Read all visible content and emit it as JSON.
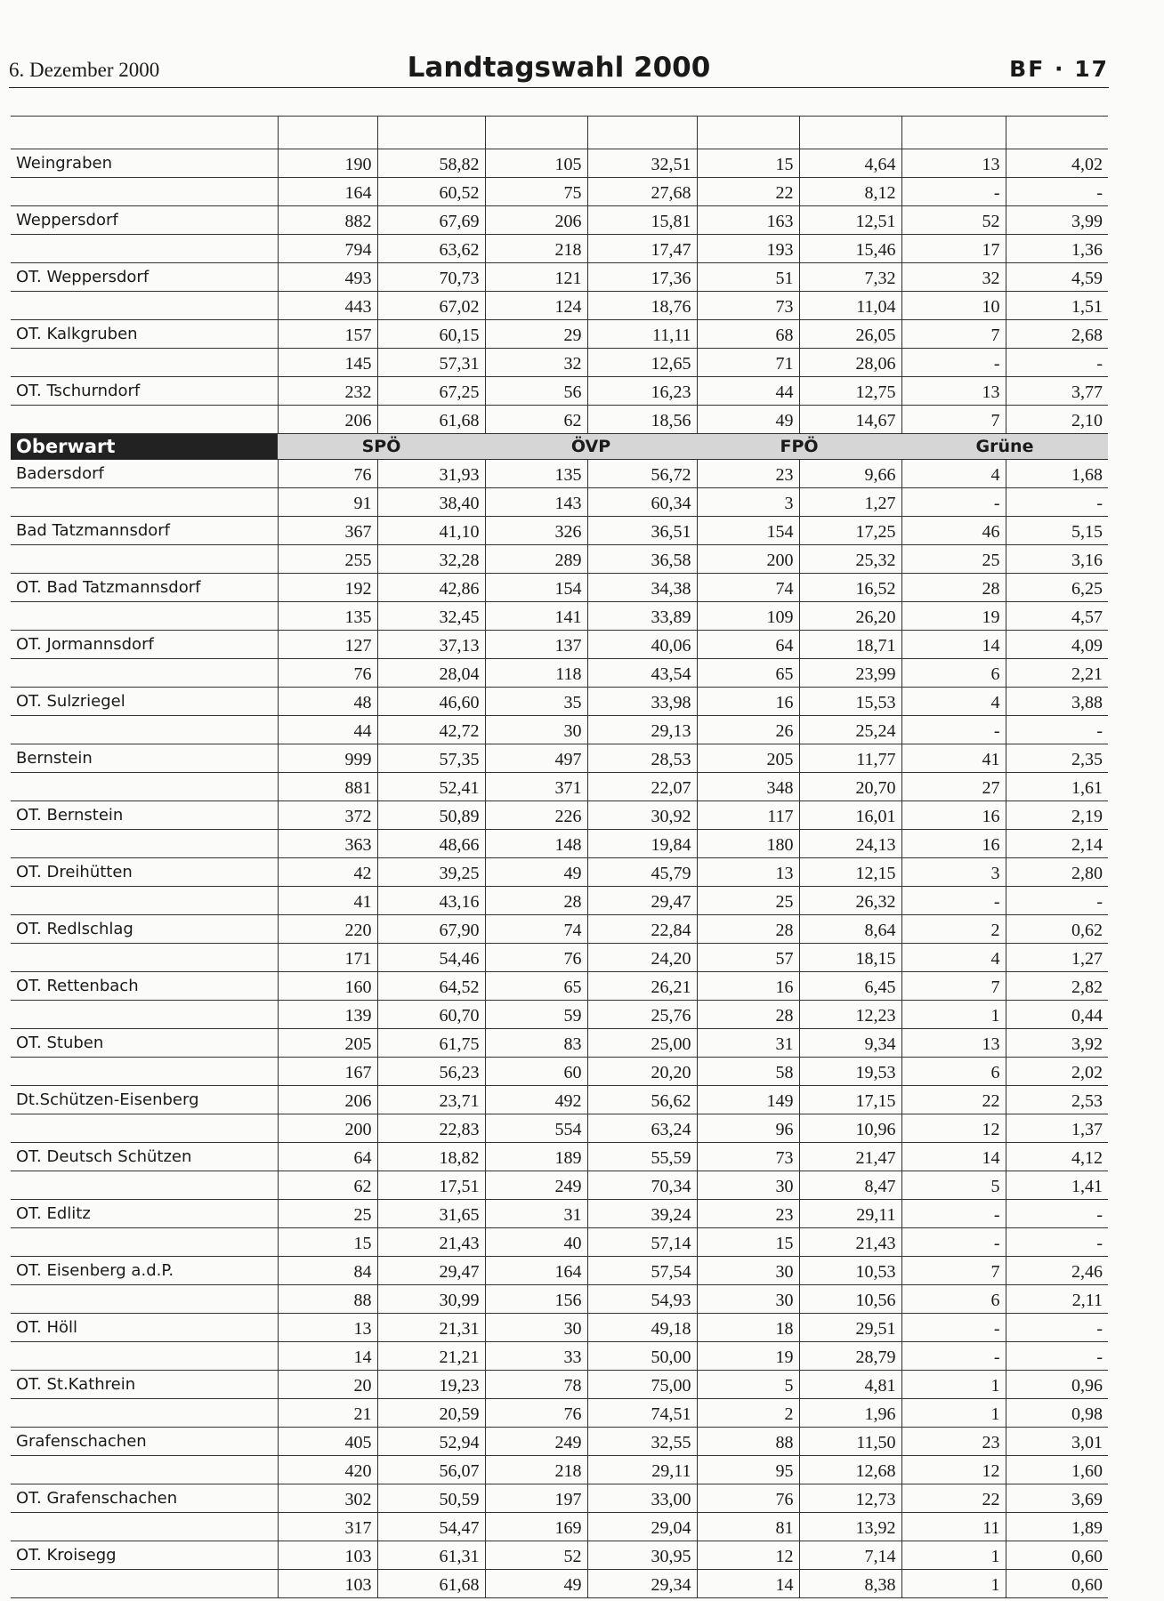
{
  "header": {
    "date": "6. Dezember 2000",
    "title": "Landtagswahl 2000",
    "page": "BF · 17"
  },
  "groups": [
    {
      "places": [
        {
          "name": "Weingraben",
          "rows": [
            [
              "190",
              "58,82",
              "105",
              "32,51",
              "15",
              "4,64",
              "13",
              "4,02"
            ],
            [
              "164",
              "60,52",
              "75",
              "27,68",
              "22",
              "8,12",
              "-",
              "-"
            ]
          ]
        },
        {
          "name": "Weppersdorf",
          "rows": [
            [
              "882",
              "67,69",
              "206",
              "15,81",
              "163",
              "12,51",
              "52",
              "3,99"
            ],
            [
              "794",
              "63,62",
              "218",
              "17,47",
              "193",
              "15,46",
              "17",
              "1,36"
            ]
          ]
        },
        {
          "name": "OT. Weppersdorf",
          "rows": [
            [
              "493",
              "70,73",
              "121",
              "17,36",
              "51",
              "7,32",
              "32",
              "4,59"
            ],
            [
              "443",
              "67,02",
              "124",
              "18,76",
              "73",
              "11,04",
              "10",
              "1,51"
            ]
          ]
        },
        {
          "name": "OT. Kalkgruben",
          "rows": [
            [
              "157",
              "60,15",
              "29",
              "11,11",
              "68",
              "26,05",
              "7",
              "2,68"
            ],
            [
              "145",
              "57,31",
              "32",
              "12,65",
              "71",
              "28,06",
              "-",
              "-"
            ]
          ]
        },
        {
          "name": "OT. Tschurndorf",
          "rows": [
            [
              "232",
              "67,25",
              "56",
              "16,23",
              "44",
              "12,75",
              "13",
              "3,77"
            ],
            [
              "206",
              "61,68",
              "62",
              "18,56",
              "49",
              "14,67",
              "7",
              "2,10"
            ]
          ]
        }
      ]
    },
    {
      "title": "Oberwart",
      "columns": [
        "SPÖ",
        "ÖVP",
        "FPÖ",
        "Grüne"
      ],
      "places": [
        {
          "name": "Badersdorf",
          "rows": [
            [
              "76",
              "31,93",
              "135",
              "56,72",
              "23",
              "9,66",
              "4",
              "1,68"
            ],
            [
              "91",
              "38,40",
              "143",
              "60,34",
              "3",
              "1,27",
              "-",
              "-"
            ]
          ]
        },
        {
          "name": "Bad Tatzmannsdorf",
          "rows": [
            [
              "367",
              "41,10",
              "326",
              "36,51",
              "154",
              "17,25",
              "46",
              "5,15"
            ],
            [
              "255",
              "32,28",
              "289",
              "36,58",
              "200",
              "25,32",
              "25",
              "3,16"
            ]
          ]
        },
        {
          "name": "OT. Bad Tatzmannsdorf",
          "rows": [
            [
              "192",
              "42,86",
              "154",
              "34,38",
              "74",
              "16,52",
              "28",
              "6,25"
            ],
            [
              "135",
              "32,45",
              "141",
              "33,89",
              "109",
              "26,20",
              "19",
              "4,57"
            ]
          ]
        },
        {
          "name": "OT. Jormannsdorf",
          "rows": [
            [
              "127",
              "37,13",
              "137",
              "40,06",
              "64",
              "18,71",
              "14",
              "4,09"
            ],
            [
              "76",
              "28,04",
              "118",
              "43,54",
              "65",
              "23,99",
              "6",
              "2,21"
            ]
          ]
        },
        {
          "name": "OT. Sulzriegel",
          "rows": [
            [
              "48",
              "46,60",
              "35",
              "33,98",
              "16",
              "15,53",
              "4",
              "3,88"
            ],
            [
              "44",
              "42,72",
              "30",
              "29,13",
              "26",
              "25,24",
              "-",
              "-"
            ]
          ]
        },
        {
          "name": "Bernstein",
          "rows": [
            [
              "999",
              "57,35",
              "497",
              "28,53",
              "205",
              "11,77",
              "41",
              "2,35"
            ],
            [
              "881",
              "52,41",
              "371",
              "22,07",
              "348",
              "20,70",
              "27",
              "1,61"
            ]
          ]
        },
        {
          "name": "OT. Bernstein",
          "rows": [
            [
              "372",
              "50,89",
              "226",
              "30,92",
              "117",
              "16,01",
              "16",
              "2,19"
            ],
            [
              "363",
              "48,66",
              "148",
              "19,84",
              "180",
              "24,13",
              "16",
              "2,14"
            ]
          ]
        },
        {
          "name": "OT. Dreihütten",
          "rows": [
            [
              "42",
              "39,25",
              "49",
              "45,79",
              "13",
              "12,15",
              "3",
              "2,80"
            ],
            [
              "41",
              "43,16",
              "28",
              "29,47",
              "25",
              "26,32",
              "-",
              "-"
            ]
          ]
        },
        {
          "name": "OT. Redlschlag",
          "rows": [
            [
              "220",
              "67,90",
              "74",
              "22,84",
              "28",
              "8,64",
              "2",
              "0,62"
            ],
            [
              "171",
              "54,46",
              "76",
              "24,20",
              "57",
              "18,15",
              "4",
              "1,27"
            ]
          ]
        },
        {
          "name": "OT. Rettenbach",
          "rows": [
            [
              "160",
              "64,52",
              "65",
              "26,21",
              "16",
              "6,45",
              "7",
              "2,82"
            ],
            [
              "139",
              "60,70",
              "59",
              "25,76",
              "28",
              "12,23",
              "1",
              "0,44"
            ]
          ]
        },
        {
          "name": "OT. Stuben",
          "rows": [
            [
              "205",
              "61,75",
              "83",
              "25,00",
              "31",
              "9,34",
              "13",
              "3,92"
            ],
            [
              "167",
              "56,23",
              "60",
              "20,20",
              "58",
              "19,53",
              "6",
              "2,02"
            ]
          ]
        },
        {
          "name": "Dt.Schützen-Eisenberg",
          "rows": [
            [
              "206",
              "23,71",
              "492",
              "56,62",
              "149",
              "17,15",
              "22",
              "2,53"
            ],
            [
              "200",
              "22,83",
              "554",
              "63,24",
              "96",
              "10,96",
              "12",
              "1,37"
            ]
          ]
        },
        {
          "name": "OT. Deutsch Schützen",
          "rows": [
            [
              "64",
              "18,82",
              "189",
              "55,59",
              "73",
              "21,47",
              "14",
              "4,12"
            ],
            [
              "62",
              "17,51",
              "249",
              "70,34",
              "30",
              "8,47",
              "5",
              "1,41"
            ]
          ]
        },
        {
          "name": "OT. Edlitz",
          "rows": [
            [
              "25",
              "31,65",
              "31",
              "39,24",
              "23",
              "29,11",
              "-",
              "-"
            ],
            [
              "15",
              "21,43",
              "40",
              "57,14",
              "15",
              "21,43",
              "-",
              "-"
            ]
          ]
        },
        {
          "name": "OT. Eisenberg a.d.P.",
          "rows": [
            [
              "84",
              "29,47",
              "164",
              "57,54",
              "30",
              "10,53",
              "7",
              "2,46"
            ],
            [
              "88",
              "30,99",
              "156",
              "54,93",
              "30",
              "10,56",
              "6",
              "2,11"
            ]
          ]
        },
        {
          "name": "OT. Höll",
          "rows": [
            [
              "13",
              "21,31",
              "30",
              "49,18",
              "18",
              "29,51",
              "-",
              "-"
            ],
            [
              "14",
              "21,21",
              "33",
              "50,00",
              "19",
              "28,79",
              "-",
              "-"
            ]
          ]
        },
        {
          "name": "OT. St.Kathrein",
          "rows": [
            [
              "20",
              "19,23",
              "78",
              "75,00",
              "5",
              "4,81",
              "1",
              "0,96"
            ],
            [
              "21",
              "20,59",
              "76",
              "74,51",
              "2",
              "1,96",
              "1",
              "0,98"
            ]
          ]
        },
        {
          "name": "Grafenschachen",
          "rows": [
            [
              "405",
              "52,94",
              "249",
              "32,55",
              "88",
              "11,50",
              "23",
              "3,01"
            ],
            [
              "420",
              "56,07",
              "218",
              "29,11",
              "95",
              "12,68",
              "12",
              "1,60"
            ]
          ]
        },
        {
          "name": "OT. Grafenschachen",
          "rows": [
            [
              "302",
              "50,59",
              "197",
              "33,00",
              "76",
              "12,73",
              "22",
              "3,69"
            ],
            [
              "317",
              "54,47",
              "169",
              "29,04",
              "81",
              "13,92",
              "11",
              "1,89"
            ]
          ]
        },
        {
          "name": "OT. Kroisegg",
          "rows": [
            [
              "103",
              "61,31",
              "52",
              "30,95",
              "12",
              "7,14",
              "1",
              "0,60"
            ],
            [
              "103",
              "61,68",
              "49",
              "29,34",
              "14",
              "8,38",
              "1",
              "0,60"
            ]
          ]
        }
      ]
    }
  ]
}
